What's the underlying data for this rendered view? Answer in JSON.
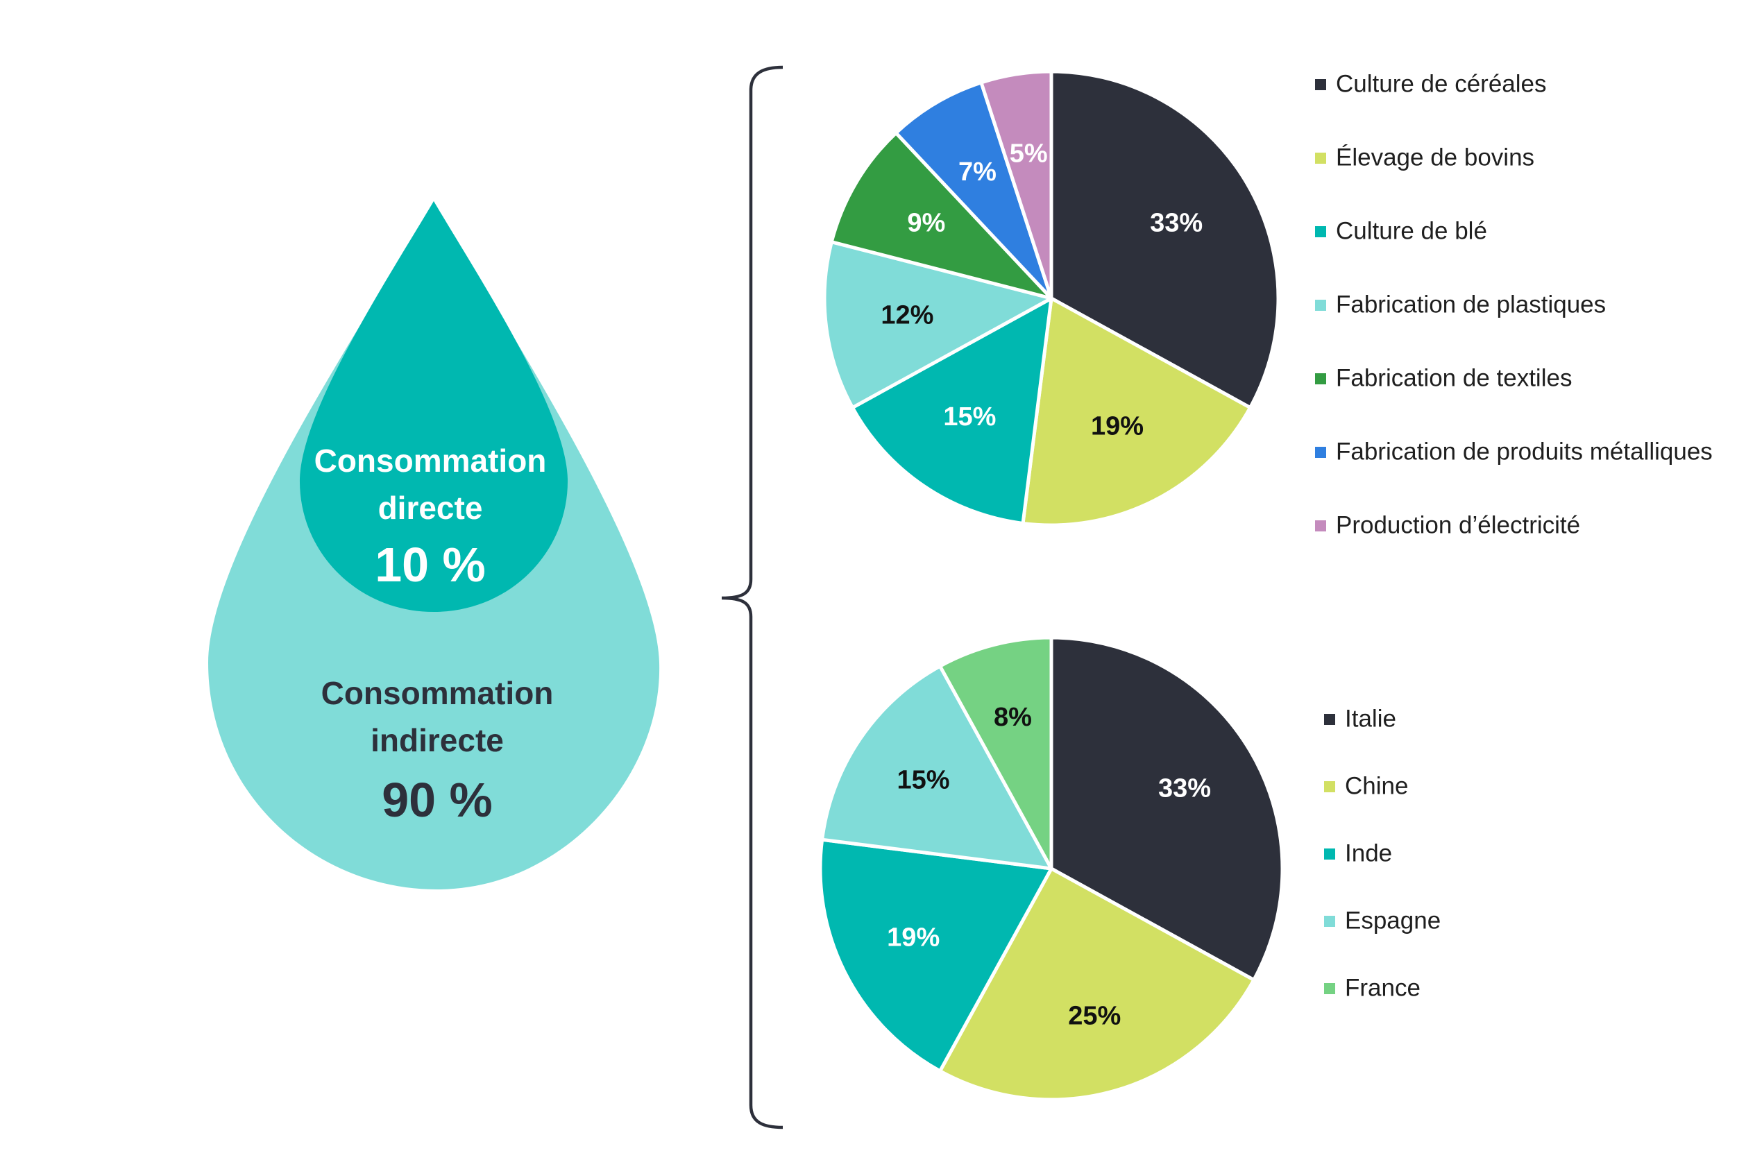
{
  "drop": {
    "direct": {
      "line1": "Consommation",
      "line2": "directe",
      "value": "10 %"
    },
    "indirect": {
      "line1": "Consommation",
      "line2": "indirecte",
      "value": "90 %"
    }
  },
  "colors": {
    "drop_outer": "#80dcd8",
    "drop_inner": "#00b8b0",
    "bracket": "#2d303b"
  },
  "chart_data": [
    {
      "type": "pie",
      "title": "",
      "legend": "right",
      "categories": [
        "Culture de céréales",
        "Élevage de bovins",
        "Culture de blé",
        "Fabrication de plastiques",
        "Fabrication de textiles",
        "Fabrication de produits métalliques",
        "Production d’électricité"
      ],
      "values": [
        33,
        19,
        15,
        12,
        9,
        7,
        5
      ],
      "labels": [
        "33%",
        "19%",
        "15%",
        "12%",
        "9%",
        "7%",
        "5%"
      ],
      "colors": [
        "#2d303b",
        "#d2e063",
        "#00b8b0",
        "#80dcd8",
        "#339c42",
        "#2f7fe0",
        "#c48bbd"
      ],
      "label_colors": [
        "#ffffff",
        "#111111",
        "#ffffff",
        "#111111",
        "#ffffff",
        "#ffffff",
        "#ffffff"
      ]
    },
    {
      "type": "pie",
      "title": "",
      "legend": "right",
      "categories": [
        "Italie",
        "Chine",
        "Inde",
        "Espagne",
        "France"
      ],
      "values": [
        33,
        25,
        19,
        15,
        8
      ],
      "labels": [
        "33%",
        "25%",
        "19%",
        "15%",
        "8%"
      ],
      "colors": [
        "#2d303b",
        "#d2e063",
        "#00b8b0",
        "#80dcd8",
        "#75d283"
      ],
      "label_colors": [
        "#ffffff",
        "#111111",
        "#ffffff",
        "#111111",
        "#111111"
      ]
    }
  ]
}
